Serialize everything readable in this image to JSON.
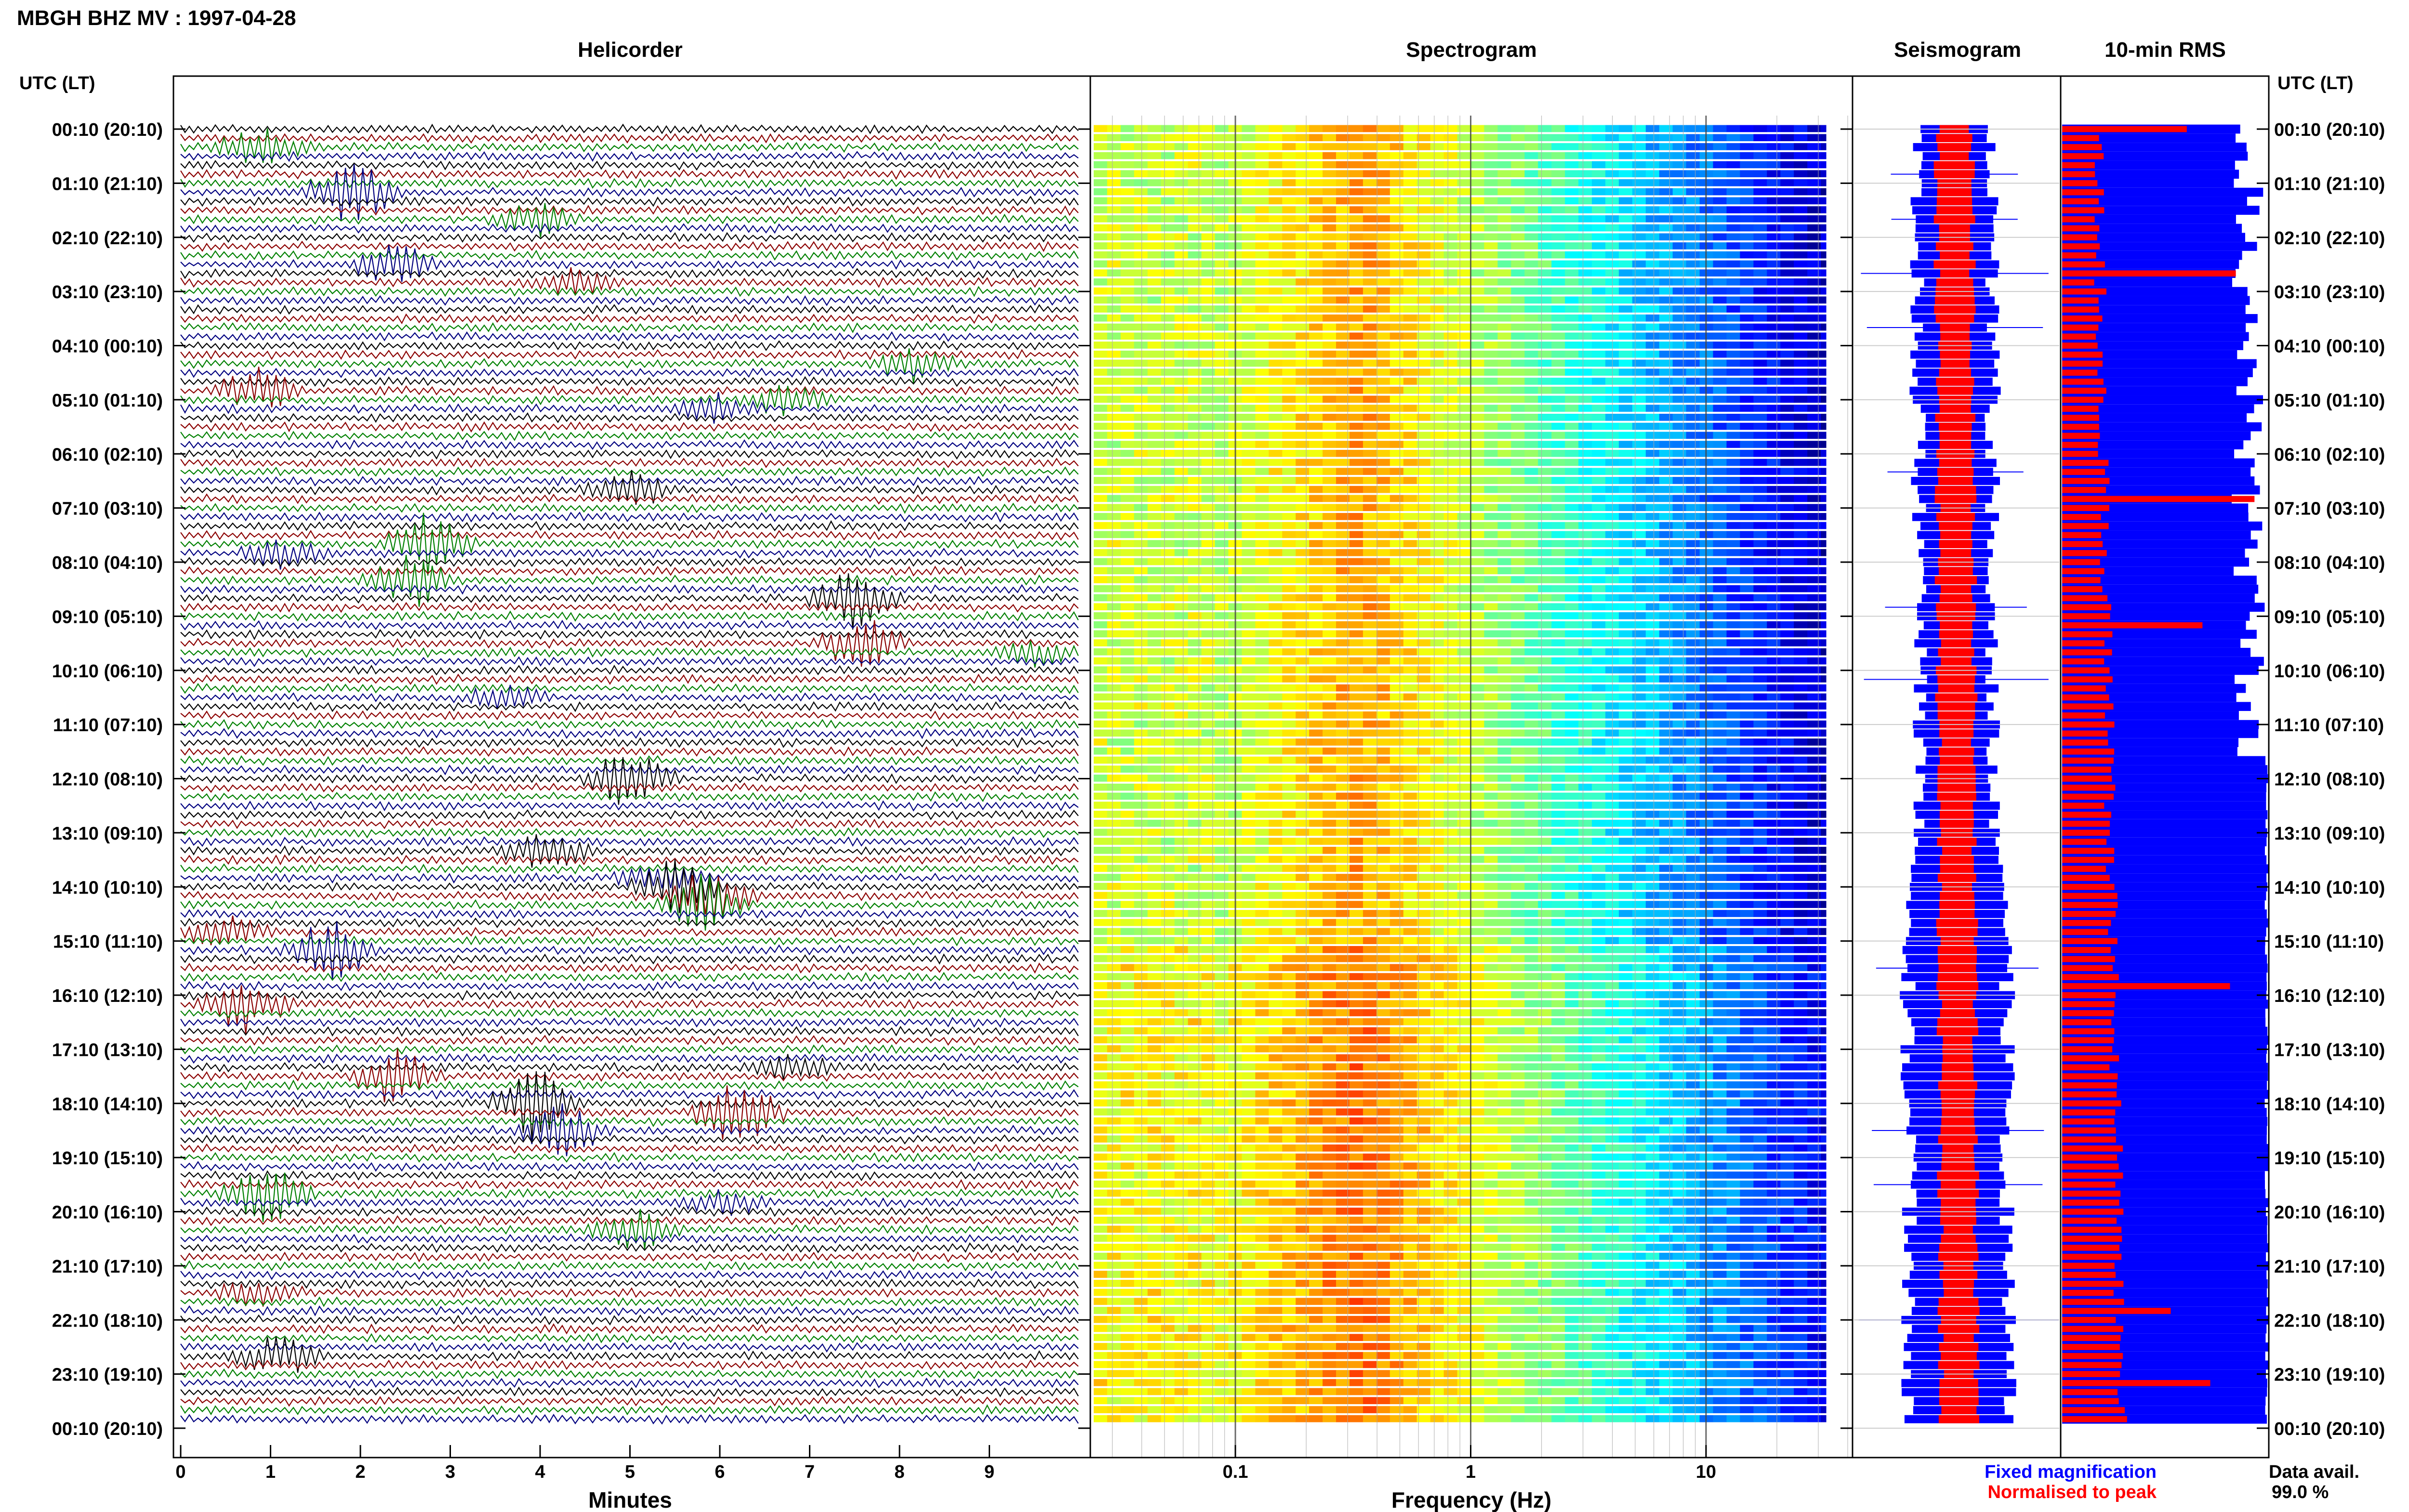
{
  "header": {
    "title": "MBGH BHZ MV : 1997-04-28",
    "time_label": "UTC (LT)"
  },
  "panels": {
    "helicorder": "Helicorder",
    "spectrogram": "Spectrogram",
    "seismogram": "Seismogram",
    "rms": "10-min RMS"
  },
  "legend": {
    "fixed": "Fixed magnification",
    "normalised": "Normalised to peak",
    "data_avail_label": "Data avail.",
    "data_avail_value": "99.0 %"
  },
  "colors": {
    "blue": "#0000ff",
    "red": "#ff0000",
    "trace_black": "#000000",
    "trace_darkred": "#8b0000",
    "trace_green": "#008000",
    "trace_navy": "#00007f"
  },
  "chart_data": [
    {
      "type": "line",
      "name": "helicorder",
      "xlabel": "Minutes",
      "xlim": [
        0,
        10
      ],
      "x_ticks": [
        "0",
        "1",
        "2",
        "3",
        "4",
        "5",
        "6",
        "7",
        "8",
        "9"
      ],
      "row_labels": [
        "00:10 (20:10)",
        "01:10 (21:10)",
        "02:10 (22:10)",
        "03:10 (23:10)",
        "04:10 (00:10)",
        "05:10 (01:10)",
        "06:10 (02:10)",
        "07:10 (03:10)",
        "08:10 (04:10)",
        "09:10 (05:10)",
        "10:10 (06:10)",
        "11:10 (07:10)",
        "12:10 (08:10)",
        "13:10 (09:10)",
        "14:10 (10:10)",
        "15:10 (11:10)",
        "16:10 (12:10)",
        "17:10 (13:10)",
        "18:10 (14:10)",
        "19:10 (15:10)",
        "20:10 (16:10)",
        "21:10 (17:10)",
        "22:10 (18:10)",
        "23:10 (19:10)",
        "00:10 (20:10)"
      ],
      "trace_colors_cycle": [
        "black",
        "darkred",
        "green",
        "navy"
      ],
      "traces_per_hour": 6
    },
    {
      "type": "heatmap",
      "name": "spectrogram",
      "xlabel": "Frequency (Hz)",
      "x_scale": "log",
      "xlim": [
        0.025,
        40
      ],
      "x_ticks": [
        "0.1",
        "1",
        "10"
      ],
      "dominant_band_hz": [
        0.2,
        0.5
      ],
      "colormap": "jet"
    },
    {
      "type": "line",
      "name": "seismogram",
      "series": [
        {
          "name": "Fixed magnification",
          "color": "#0000ff"
        },
        {
          "name": "Normalised to peak",
          "color": "#ff0000"
        }
      ]
    },
    {
      "type": "bar",
      "name": "10-min RMS",
      "series": [
        {
          "name": "Fixed magnification",
          "color": "#0000ff"
        },
        {
          "name": "Normalised to peak",
          "color": "#ff0000"
        }
      ]
    }
  ]
}
